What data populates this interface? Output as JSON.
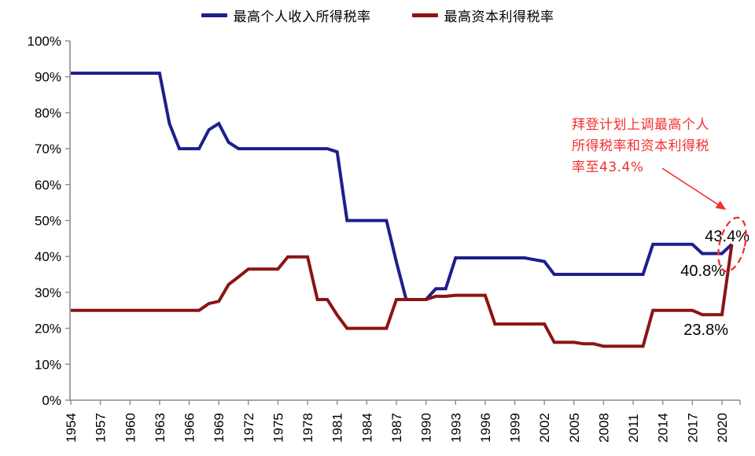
{
  "legend": [
    {
      "label": "最高个人收入所得税率",
      "color": "#1E1E8C"
    },
    {
      "label": "最高资本利得税率",
      "color": "#8B1414"
    }
  ],
  "annotation": {
    "lines": [
      "拜登计划上调最高个人",
      "所得税率和资本利得税",
      "率至43.4%"
    ],
    "color": "#F23030"
  },
  "point_labels": [
    {
      "text": "43.4%"
    },
    {
      "text": "40.8%"
    },
    {
      "text": "23.8%"
    }
  ],
  "chart_data": {
    "type": "line",
    "title": "",
    "xlabel": "",
    "ylabel": "",
    "grid": false,
    "legend_position": "top",
    "xlim": [
      1954,
      2022
    ],
    "ylim": [
      0,
      100
    ],
    "x_ticks": [
      1954,
      1957,
      1960,
      1963,
      1966,
      1969,
      1972,
      1975,
      1978,
      1981,
      1984,
      1987,
      1990,
      1993,
      1996,
      1999,
      2002,
      2005,
      2008,
      2011,
      2014,
      2017,
      2020
    ],
    "y_ticks": [
      0,
      10,
      20,
      30,
      40,
      50,
      60,
      70,
      80,
      90,
      100
    ],
    "y_tick_suffix": "%",
    "x": [
      1954,
      1955,
      1956,
      1957,
      1958,
      1959,
      1960,
      1961,
      1962,
      1963,
      1964,
      1965,
      1966,
      1967,
      1968,
      1969,
      1970,
      1971,
      1972,
      1973,
      1974,
      1975,
      1976,
      1977,
      1978,
      1979,
      1980,
      1981,
      1982,
      1983,
      1984,
      1985,
      1986,
      1987,
      1988,
      1989,
      1990,
      1991,
      1992,
      1993,
      1994,
      1995,
      1996,
      1997,
      1998,
      1999,
      2000,
      2001,
      2002,
      2003,
      2004,
      2005,
      2006,
      2007,
      2008,
      2009,
      2010,
      2011,
      2012,
      2013,
      2014,
      2015,
      2016,
      2017,
      2018,
      2019,
      2020,
      2021
    ],
    "series": [
      {
        "name": "最高个人收入所得税率",
        "color": "#1E1E8C",
        "values": [
          91,
          91,
          91,
          91,
          91,
          91,
          91,
          91,
          91,
          91,
          77,
          70,
          70,
          70,
          75.25,
          77,
          71.75,
          70,
          70,
          70,
          70,
          70,
          70,
          70,
          70,
          70,
          70,
          69.1,
          50,
          50,
          50,
          50,
          50,
          38.5,
          28,
          28,
          28,
          31,
          31,
          39.6,
          39.6,
          39.6,
          39.6,
          39.6,
          39.6,
          39.6,
          39.6,
          39.1,
          38.6,
          35,
          35,
          35,
          35,
          35,
          35,
          35,
          35,
          35,
          35,
          43.4,
          43.4,
          43.4,
          43.4,
          43.4,
          40.8,
          40.8,
          40.8,
          43.4
        ]
      },
      {
        "name": "最高资本利得税率",
        "color": "#8B1414",
        "values": [
          25,
          25,
          25,
          25,
          25,
          25,
          25,
          25,
          25,
          25,
          25,
          25,
          25,
          25,
          26.9,
          27.5,
          32.2,
          34.3,
          36.5,
          36.5,
          36.5,
          36.5,
          39.9,
          39.9,
          39.9,
          28,
          28,
          23.7,
          20,
          20,
          20,
          20,
          20,
          28,
          28,
          28,
          28,
          28.9,
          28.9,
          29.2,
          29.2,
          29.2,
          29.2,
          21.2,
          21.2,
          21.2,
          21.2,
          21.2,
          21.2,
          16.1,
          16.1,
          16.1,
          15.7,
          15.7,
          15,
          15,
          15,
          15,
          15,
          25,
          25,
          25,
          25,
          25,
          23.8,
          23.8,
          23.8,
          43.4
        ]
      }
    ]
  }
}
